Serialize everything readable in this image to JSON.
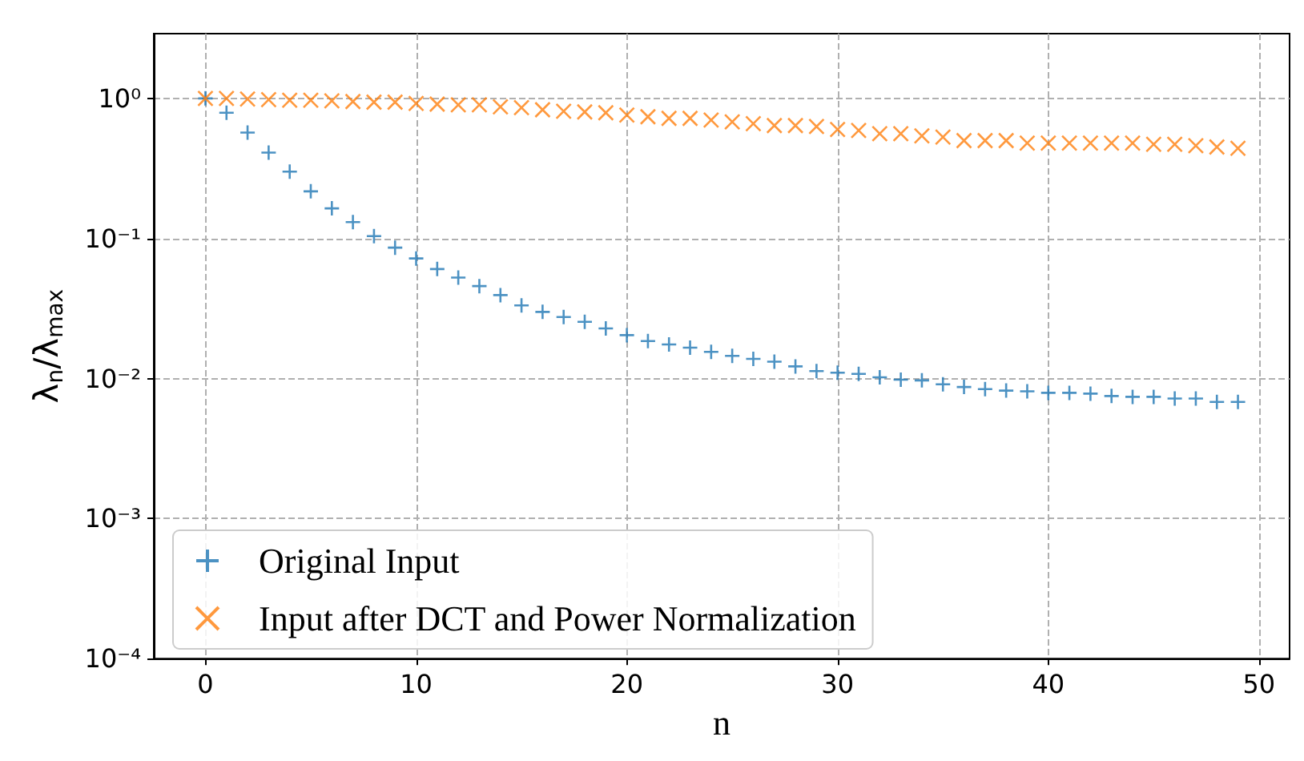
{
  "chart_data": {
    "type": "scatter",
    "xlabel": "n",
    "ylabel": "λ$_{n}$/λ$_{max}$",
    "x": [
      0,
      1,
      2,
      3,
      4,
      5,
      6,
      7,
      8,
      9,
      10,
      11,
      12,
      13,
      14,
      15,
      16,
      17,
      18,
      19,
      20,
      21,
      22,
      23,
      24,
      25,
      26,
      27,
      28,
      29,
      30,
      31,
      32,
      33,
      34,
      35,
      36,
      37,
      38,
      39,
      40,
      41,
      42,
      43,
      44,
      45,
      46,
      47,
      48,
      49
    ],
    "series": [
      {
        "name": "Original Input",
        "color": "#1f77b4",
        "marker": "cross",
        "values": [
          1.0,
          0.79,
          0.57,
          0.41,
          0.3,
          0.217,
          0.164,
          0.131,
          0.104,
          0.086,
          0.072,
          0.0605,
          0.0526,
          0.0457,
          0.0394,
          0.0333,
          0.0299,
          0.0275,
          0.0254,
          0.0228,
          0.0204,
          0.0185,
          0.0175,
          0.0166,
          0.0155,
          0.0145,
          0.0138,
          0.0132,
          0.0122,
          0.0113,
          0.011,
          0.0108,
          0.0102,
          0.0098,
          0.0097,
          0.0091,
          0.0087,
          0.0084,
          0.0082,
          0.0081,
          0.0079,
          0.0079,
          0.0078,
          0.0075,
          0.0074,
          0.0074,
          0.0072,
          0.0072,
          0.0068,
          0.0068
        ]
      },
      {
        "name": "Input after DCT and Power Normalization",
        "color": "#ff7f0e",
        "marker": "x",
        "values": [
          1.0,
          1.0,
          0.99,
          0.98,
          0.97,
          0.97,
          0.96,
          0.95,
          0.94,
          0.94,
          0.92,
          0.91,
          0.9,
          0.9,
          0.87,
          0.86,
          0.83,
          0.81,
          0.8,
          0.79,
          0.76,
          0.74,
          0.72,
          0.72,
          0.7,
          0.68,
          0.66,
          0.64,
          0.64,
          0.63,
          0.6,
          0.59,
          0.56,
          0.56,
          0.54,
          0.53,
          0.5,
          0.5,
          0.5,
          0.48,
          0.48,
          0.48,
          0.48,
          0.48,
          0.48,
          0.47,
          0.47,
          0.46,
          0.45,
          0.44
        ]
      }
    ],
    "log": "y",
    "xlim": [
      -2.45,
      51.45
    ],
    "xticks": [
      0,
      10,
      20,
      30,
      40,
      50
    ],
    "ylim": [
      0.0001,
      2.9
    ],
    "yticks": [
      {
        "value": 0.0001,
        "label": "10⁻⁴"
      },
      {
        "value": 0.001,
        "label": "10⁻³"
      },
      {
        "value": 0.01,
        "label": "10⁻²"
      },
      {
        "value": 0.1,
        "label": "10⁻¹"
      },
      {
        "value": 1,
        "label": "10⁰"
      }
    ],
    "grid": true,
    "legend": "bottom left"
  }
}
